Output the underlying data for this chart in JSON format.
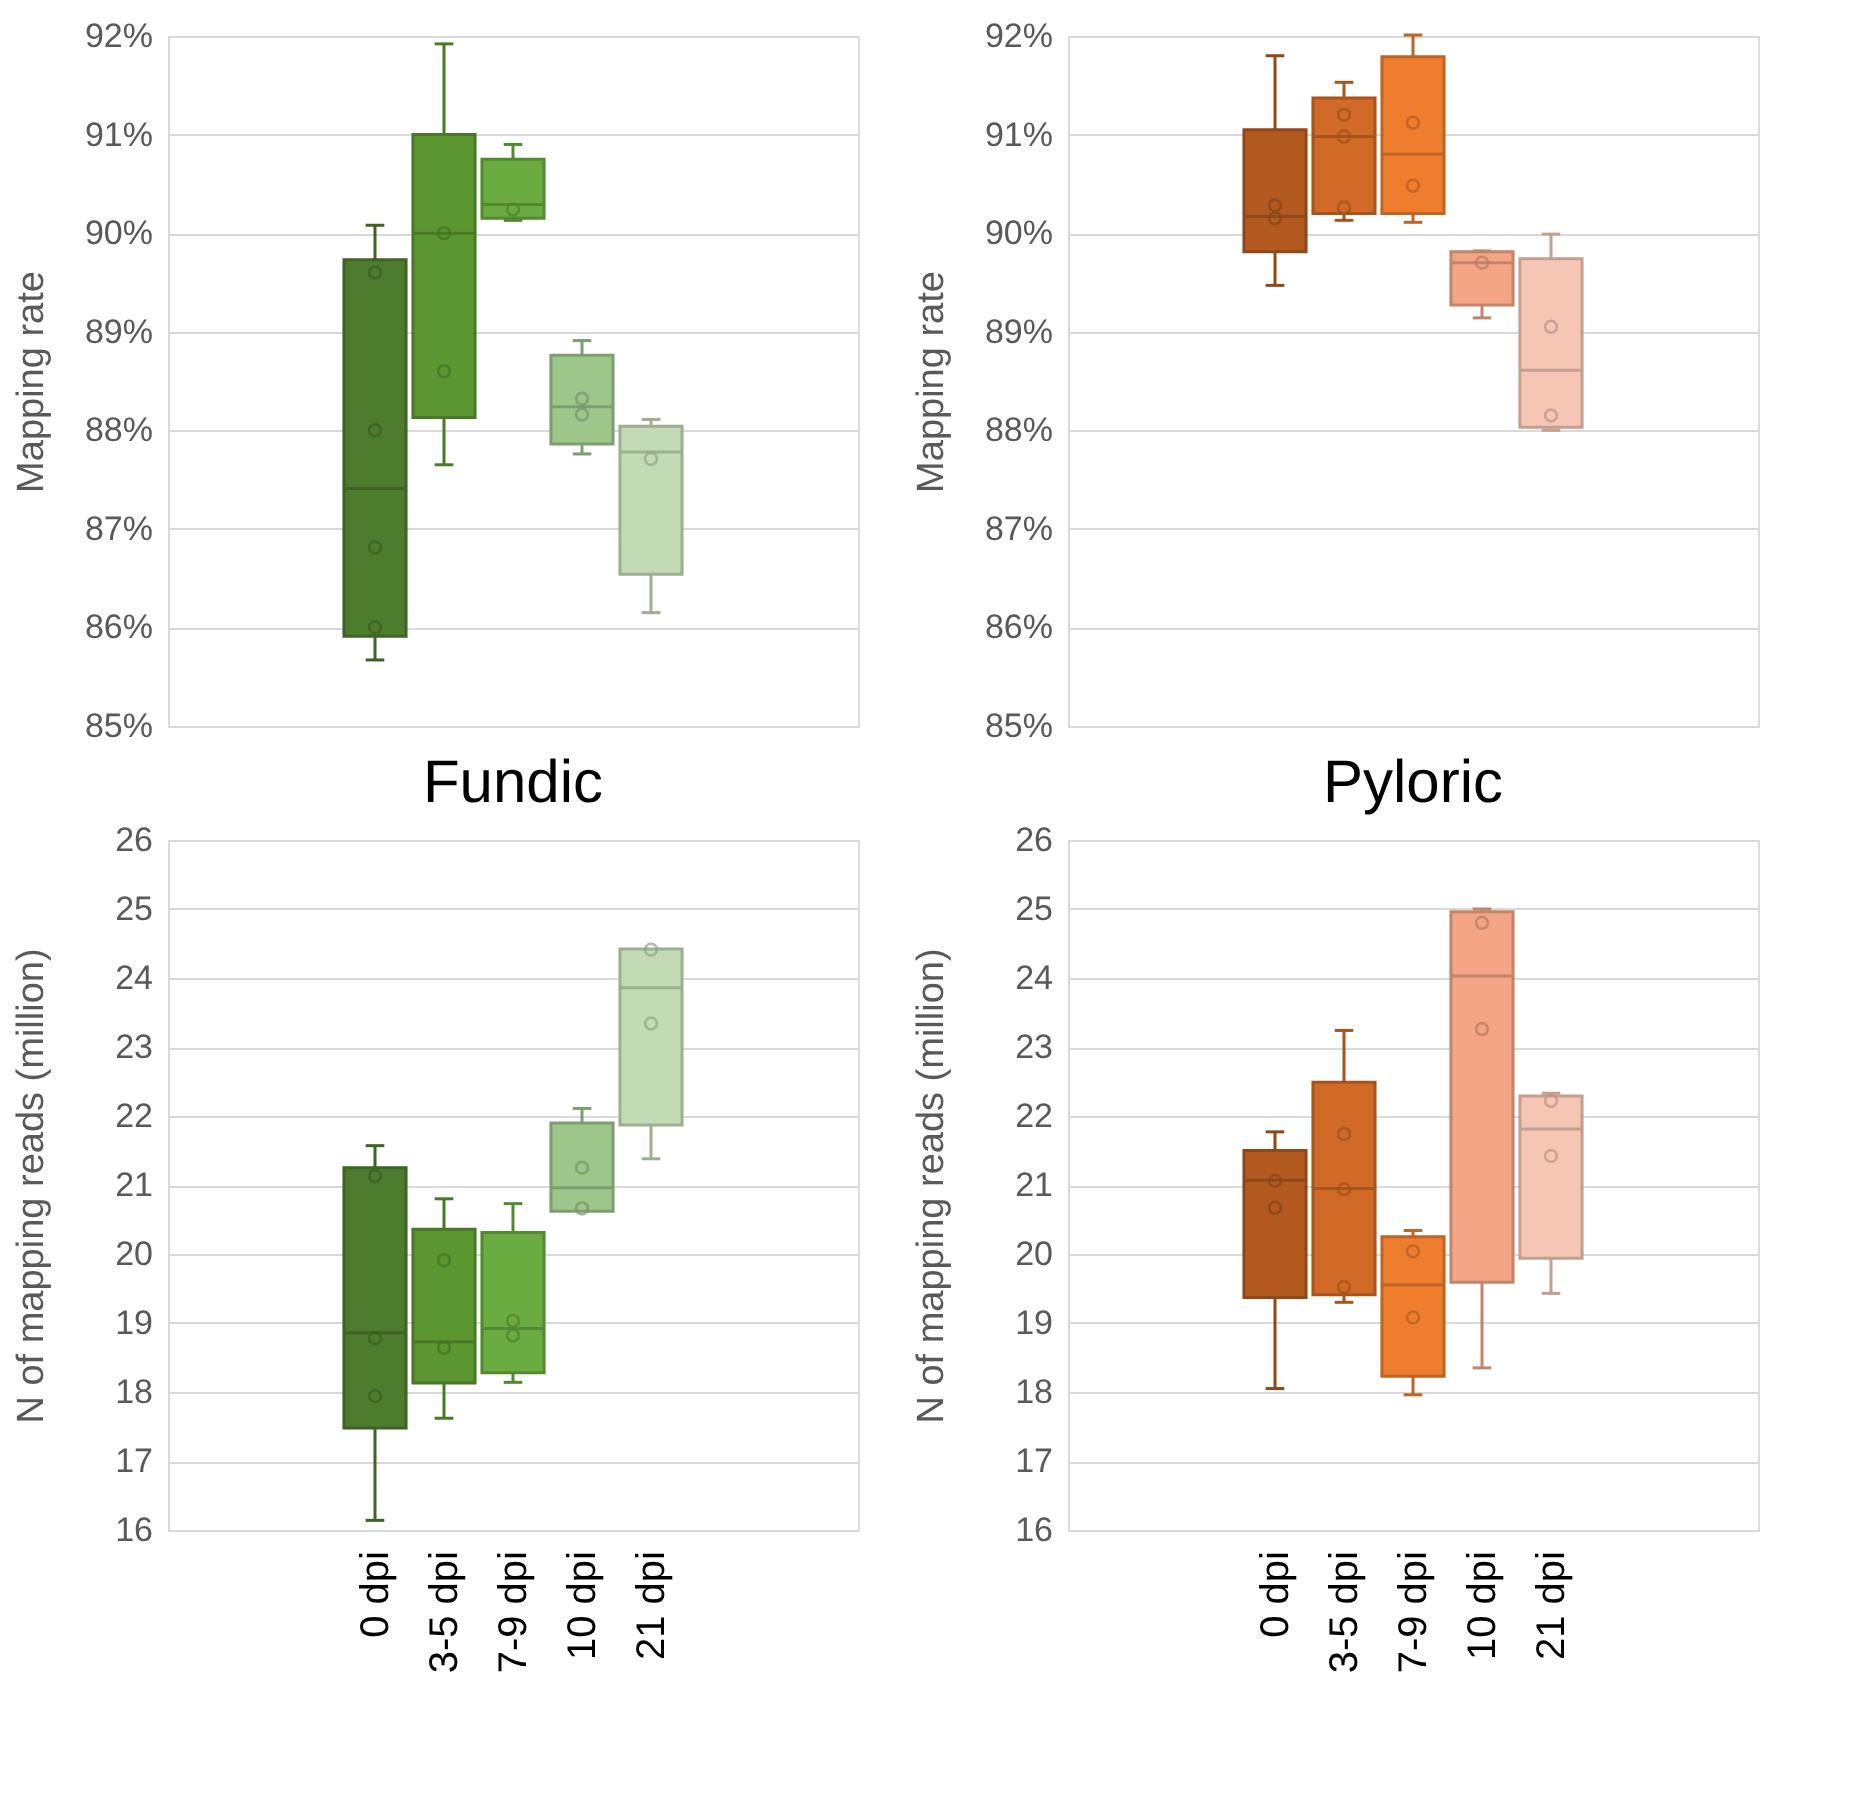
{
  "chart_data": [
    {
      "type": "box",
      "ylabel": "Mapping rate",
      "categories": [
        "0 dpi",
        "3-5 dpi",
        "7-9 dpi",
        "10 dpi",
        "21 dpi"
      ],
      "colors": [
        "#4e7c2e",
        "#5c9631",
        "#6aac40",
        "#9dc68a",
        "#c3dbb5"
      ],
      "boxes": [
        {
          "low": 85.67,
          "q1": 85.91,
          "median": 87.41,
          "q3": 89.73,
          "high": 90.08
        },
        {
          "low": 87.65,
          "q1": 88.13,
          "median": 90.0,
          "q3": 91.0,
          "high": 91.92
        },
        {
          "low": 90.13,
          "q1": 90.15,
          "median": 90.29,
          "q3": 90.75,
          "high": 90.9
        },
        {
          "low": 87.76,
          "q1": 87.86,
          "median": 88.24,
          "q3": 88.76,
          "high": 88.91
        },
        {
          "low": 86.15,
          "q1": 86.54,
          "median": 87.78,
          "q3": 88.04,
          "high": 88.11
        }
      ],
      "series": [
        {
          "type": "scatter",
          "x": [
            "0 dpi",
            "0 dpi",
            "0 dpi",
            "0 dpi",
            "3-5 dpi",
            "3-5 dpi",
            "7-9 dpi",
            "10 dpi",
            "10 dpi",
            "21 dpi"
          ],
          "values": [
            89.6,
            88.0,
            86.81,
            86.0,
            90.0,
            88.6,
            90.24,
            88.32,
            88.16,
            87.71
          ],
          "colors": [
            "#3a5d22",
            "#3a5d22",
            "#3a5d22",
            "#3a5d22",
            "#457024",
            "#457024",
            "#4f8130",
            "#759467",
            "#759467",
            "#92a487"
          ]
        }
      ],
      "ylim": [
        85,
        92
      ],
      "yticks": [
        {
          "value": 85,
          "label": "85%"
        },
        {
          "value": 86,
          "label": "86%"
        },
        {
          "value": 87,
          "label": "87%"
        },
        {
          "value": 88,
          "label": "88%"
        },
        {
          "value": 89,
          "label": "89%"
        },
        {
          "value": 90,
          "label": "90%"
        },
        {
          "value": 91,
          "label": "91%"
        },
        {
          "value": 92,
          "label": "92%"
        }
      ],
      "grid": "y",
      "tick_labels": "y"
    },
    {
      "type": "box",
      "ylabel": "Mapping rate",
      "categories": [
        "0 dpi",
        "3-5 dpi",
        "7-9 dpi",
        "10 dpi",
        "21 dpi"
      ],
      "colors": [
        "#b35a20",
        "#d06a26",
        "#ee7d2e",
        "#f3a585",
        "#f6c6b5"
      ],
      "boxes": [
        {
          "low": 89.47,
          "q1": 89.81,
          "median": 90.17,
          "q3": 91.05,
          "high": 91.8
        },
        {
          "low": 90.13,
          "q1": 90.2,
          "median": 90.98,
          "q3": 91.37,
          "high": 91.53
        },
        {
          "low": 90.11,
          "q1": 90.2,
          "median": 90.8,
          "q3": 91.79,
          "high": 92.01
        },
        {
          "low": 89.14,
          "q1": 89.27,
          "median": 89.7,
          "q3": 89.81,
          "high": 89.82
        },
        {
          "low": 88.0,
          "q1": 88.03,
          "median": 88.61,
          "q3": 89.74,
          "high": 89.99
        }
      ],
      "series": [
        {
          "type": "scatter",
          "x": [
            "0 dpi",
            "0 dpi",
            "3-5 dpi",
            "3-5 dpi",
            "3-5 dpi",
            "7-9 dpi",
            "7-9 dpi",
            "10 dpi",
            "21 dpi",
            "21 dpi"
          ],
          "values": [
            90.28,
            90.15,
            91.2,
            90.98,
            90.26,
            91.12,
            90.48,
            89.7,
            89.05,
            88.15
          ],
          "colors": [
            "#864318",
            "#864318",
            "#9c4f1c",
            "#9c4f1c",
            "#9c4f1c",
            "#b25d22",
            "#b25d22",
            "#b67b63",
            "#b89487",
            "#b89487"
          ]
        }
      ],
      "ylim": [
        85,
        92
      ],
      "yticks": [
        {
          "value": 85,
          "label": "85%"
        },
        {
          "value": 86,
          "label": "86%"
        },
        {
          "value": 87,
          "label": "87%"
        },
        {
          "value": 88,
          "label": "88%"
        },
        {
          "value": 89,
          "label": "89%"
        },
        {
          "value": 90,
          "label": "90%"
        },
        {
          "value": 91,
          "label": "91%"
        },
        {
          "value": 92,
          "label": "92%"
        }
      ],
      "grid": "y",
      "tick_labels": "y"
    },
    {
      "type": "box",
      "title": "Fundic",
      "ylabel": "N of mapping reads (million)",
      "categories": [
        "0 dpi",
        "3-5 dpi",
        "7-9 dpi",
        "10 dpi",
        "21 dpi"
      ],
      "colors": [
        "#4e7c2e",
        "#5c9631",
        "#6aac40",
        "#9dc68a",
        "#c3dbb5"
      ],
      "boxes": [
        {
          "low": 16.14,
          "q1": 17.48,
          "median": 18.86,
          "q3": 21.25,
          "high": 21.57
        },
        {
          "low": 17.62,
          "q1": 18.13,
          "median": 18.73,
          "q3": 20.36,
          "high": 20.8
        },
        {
          "low": 18.14,
          "q1": 18.28,
          "median": 18.92,
          "q3": 20.31,
          "high": 20.73
        },
        {
          "low": 20.62,
          "q1": 20.62,
          "median": 20.96,
          "q3": 21.9,
          "high": 22.11
        },
        {
          "low": 21.38,
          "q1": 21.87,
          "median": 23.86,
          "q3": 24.42,
          "high": 24.42
        }
      ],
      "series": [
        {
          "type": "scatter",
          "x": [
            "0 dpi",
            "0 dpi",
            "0 dpi",
            "3-5 dpi",
            "3-5 dpi",
            "7-9 dpi",
            "7-9 dpi",
            "10 dpi",
            "10 dpi",
            "21 dpi",
            "21 dpi"
          ],
          "values": [
            21.13,
            18.78,
            17.94,
            19.91,
            18.64,
            19.03,
            18.82,
            21.25,
            20.66,
            24.41,
            23.34
          ],
          "colors": [
            "#3a5d22",
            "#3a5d22",
            "#3a5d22",
            "#457024",
            "#457024",
            "#4f8130",
            "#4f8130",
            "#759467",
            "#759467",
            "#92a487",
            "#92a487"
          ]
        }
      ],
      "ylim": [
        16,
        26
      ],
      "yticks": [
        16,
        17,
        18,
        19,
        20,
        21,
        22,
        23,
        24,
        25,
        26
      ],
      "grid": "y"
    },
    {
      "type": "box",
      "title": "Pyloric",
      "ylabel": "N of mapping reads (million)",
      "categories": [
        "0 dpi",
        "3-5 dpi",
        "7-9 dpi",
        "10 dpi",
        "21 dpi"
      ],
      "colors": [
        "#b35a20",
        "#d06a26",
        "#ee7d2e",
        "#f3a585",
        "#f6c6b5"
      ],
      "boxes": [
        {
          "low": 18.05,
          "q1": 19.37,
          "median": 21.07,
          "q3": 21.5,
          "high": 21.77
        },
        {
          "low": 19.3,
          "q1": 19.41,
          "median": 20.95,
          "q3": 22.49,
          "high": 23.24
        },
        {
          "low": 17.96,
          "q1": 18.23,
          "median": 19.55,
          "q3": 20.25,
          "high": 20.34
        },
        {
          "low": 18.35,
          "q1": 19.59,
          "median": 24.03,
          "q3": 24.96,
          "high": 25.0
        },
        {
          "low": 19.43,
          "q1": 19.94,
          "median": 21.81,
          "q3": 22.29,
          "high": 22.33
        }
      ],
      "series": [
        {
          "type": "scatter",
          "x": [
            "0 dpi",
            "0 dpi",
            "3-5 dpi",
            "3-5 dpi",
            "3-5 dpi",
            "7-9 dpi",
            "7-9 dpi",
            "10 dpi",
            "10 dpi",
            "21 dpi",
            "21 dpi"
          ],
          "values": [
            21.06,
            20.67,
            21.74,
            20.94,
            19.52,
            20.04,
            19.08,
            24.8,
            23.26,
            22.22,
            21.42
          ],
          "colors": [
            "#864318",
            "#864318",
            "#9c4f1c",
            "#9c4f1c",
            "#9c4f1c",
            "#b25d22",
            "#b25d22",
            "#b67b63",
            "#b67b63",
            "#b89487",
            "#b89487"
          ]
        }
      ],
      "ylim": [
        16,
        26
      ],
      "yticks": [
        16,
        17,
        18,
        19,
        20,
        21,
        22,
        23,
        24,
        25,
        26
      ],
      "grid": "y"
    }
  ]
}
